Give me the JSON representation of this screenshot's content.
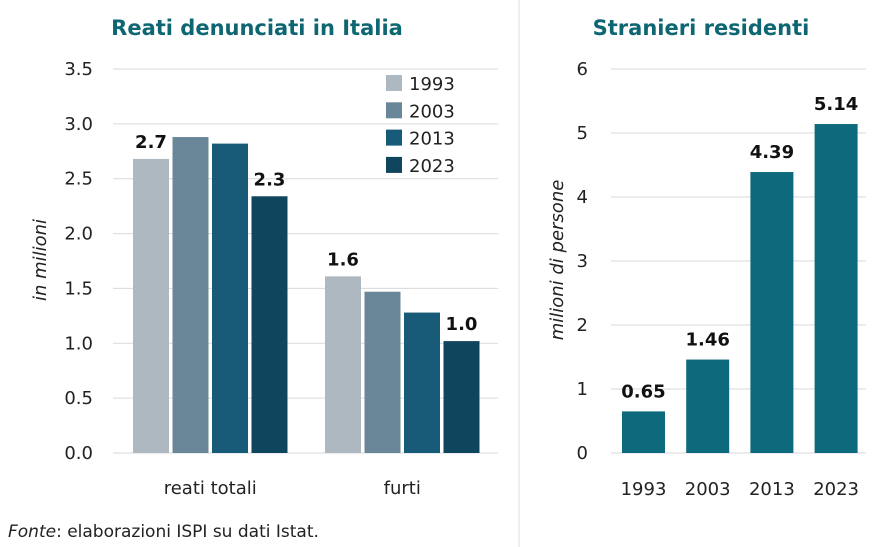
{
  "chart_data": [
    {
      "type": "bar",
      "title": "Reati denunciati in Italia",
      "ylabel": "in milioni",
      "xlabel": "",
      "ylim": [
        0,
        3.5
      ],
      "yticks": [
        "0.0",
        "0.5",
        "1.0",
        "1.5",
        "2.0",
        "2.5",
        "3.0",
        "3.5"
      ],
      "grid": true,
      "legend": "top-right",
      "categories": [
        "reati totali",
        "furti"
      ],
      "series": [
        {
          "name": "1993",
          "color": "#adb8c1",
          "values": [
            2.68,
            1.61
          ],
          "labels": [
            "2.7",
            "1.6"
          ]
        },
        {
          "name": "2003",
          "color": "#6a879a",
          "values": [
            2.88,
            1.47
          ],
          "labels": [
            "",
            ""
          ]
        },
        {
          "name": "2013",
          "color": "#175b78",
          "values": [
            2.82,
            1.28
          ],
          "labels": [
            "",
            ""
          ]
        },
        {
          "name": "2023",
          "color": "#10455e",
          "values": [
            2.34,
            1.02
          ],
          "labels": [
            "2.3",
            "1.0"
          ]
        }
      ]
    },
    {
      "type": "bar",
      "title": "Stranieri residenti",
      "ylabel": "milioni di persone",
      "xlabel": "",
      "ylim": [
        0,
        6
      ],
      "yticks": [
        "0",
        "1",
        "2",
        "3",
        "4",
        "5",
        "6"
      ],
      "grid": true,
      "categories": [
        "1993",
        "2003",
        "2013",
        "2023"
      ],
      "color": "#0d6a7c",
      "values": [
        0.65,
        1.46,
        4.39,
        5.14
      ],
      "labels": [
        "0.65",
        "1.46",
        "4.39",
        "5.14"
      ]
    }
  ],
  "source": {
    "label": "Fonte",
    "text": ": elaborazioni ISPI su dati Istat."
  },
  "colors": {
    "title": "#0e6672",
    "grid": "#d9d9d9",
    "divider": "#dcdcdc"
  }
}
